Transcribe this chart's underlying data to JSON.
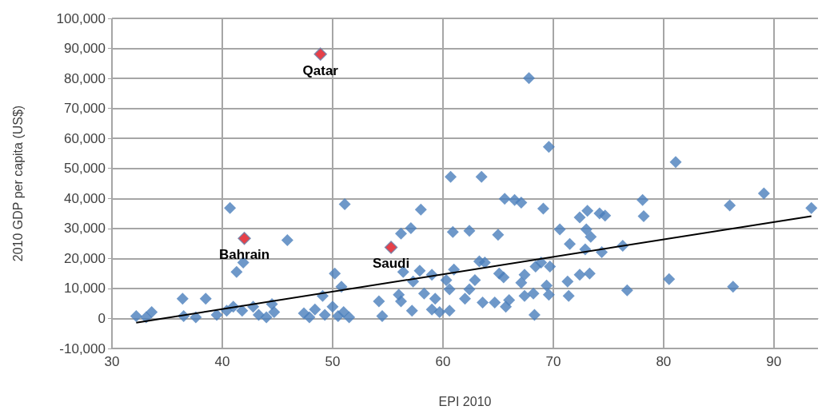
{
  "chart_data": {
    "type": "scatter",
    "xlabel": "EPI 2010",
    "ylabel": "2010 GDP per capita (US$)",
    "xlim": [
      30,
      94
    ],
    "xticks": [
      30,
      40,
      50,
      60,
      70,
      80,
      90
    ],
    "ylim": [
      -10000,
      100000
    ],
    "yticks": [
      {
        "value": -10000,
        "label": "-10,000"
      },
      {
        "value": 0,
        "label": "0"
      },
      {
        "value": 10000,
        "label": "10,000"
      },
      {
        "value": 20000,
        "label": "20,000"
      },
      {
        "value": 30000,
        "label": "30,000"
      },
      {
        "value": 40000,
        "label": "40,000"
      },
      {
        "value": 50000,
        "label": "50,000"
      },
      {
        "value": 60000,
        "label": "60,000"
      },
      {
        "value": 70000,
        "label": "70,000"
      },
      {
        "value": 80000,
        "label": "80,000"
      },
      {
        "value": 90000,
        "label": "90,000"
      },
      {
        "value": 100000,
        "label": "100,000"
      }
    ],
    "grid": true,
    "marker": "diamond",
    "series": [
      {
        "color": "#4a7ebb",
        "x": [
          40.7,
          45.9,
          41.9,
          41.3,
          50.2,
          50.8,
          51.1,
          49.1,
          32.2,
          33.6,
          33.1,
          36.4,
          38.5,
          36.5,
          37.6,
          39.5,
          40.4,
          41.0,
          41.8,
          42.8,
          43.3,
          44.0,
          44.5,
          44.7,
          47.4,
          47.9,
          48.4,
          49.3,
          50.0,
          51.0,
          51.5,
          50.5,
          58.0,
          56.2,
          57.1,
          60.9,
          62.4,
          65.0,
          65.6,
          66.5,
          67.1,
          69.1,
          70.6,
          71.5,
          72.4,
          54.2,
          54.5,
          56.0,
          56.2,
          56.4,
          57.3,
          57.2,
          57.9,
          58.3,
          59.0,
          59.3,
          59.0,
          59.7,
          60.3,
          60.6,
          61.0,
          60.6,
          62.4,
          62.9,
          63.3,
          63.8,
          62.0,
          63.6,
          64.7,
          65.1,
          65.5,
          65.7,
          66.0,
          67.1,
          67.4,
          67.4,
          68.2,
          68.3,
          68.4,
          68.9,
          69.4,
          69.6,
          69.7,
          71.3,
          71.4,
          72.4,
          81.1,
          89.1,
          86.0,
          93.4,
          78.1,
          78.2,
          80.5,
          86.3,
          76.7,
          76.3,
          73.1,
          74.2,
          74.7,
          73.0,
          73.4,
          72.9,
          74.4,
          73.3,
          67.8,
          69.6,
          60.7,
          63.5
        ],
        "values": [
          36800,
          26100,
          18600,
          15500,
          15000,
          10600,
          38100,
          7500,
          800,
          2100,
          400,
          6600,
          6600,
          800,
          400,
          1200,
          2600,
          3900,
          2600,
          3900,
          1200,
          400,
          4800,
          2100,
          1700,
          400,
          3000,
          1200,
          3900,
          2100,
          400,
          800,
          36300,
          28300,
          30100,
          28800,
          29200,
          27900,
          39900,
          39500,
          38600,
          36600,
          29700,
          24800,
          33700,
          5700,
          800,
          7900,
          5700,
          15500,
          12300,
          2600,
          15900,
          8300,
          14600,
          6600,
          3000,
          2100,
          12800,
          2600,
          16300,
          9700,
          9700,
          12800,
          19000,
          18600,
          6600,
          5300,
          5300,
          15000,
          13700,
          3900,
          6100,
          11900,
          14600,
          7500,
          8300,
          1200,
          17300,
          18600,
          11000,
          7900,
          17300,
          12300,
          7500,
          14600,
          52100,
          41700,
          37700,
          36800,
          39500,
          34100,
          13100,
          10600,
          9400,
          24200,
          35900,
          35000,
          34300,
          29700,
          27200,
          23000,
          22100,
          15000,
          80100,
          57200,
          47200,
          47200
        ]
      },
      {
        "color": "#e0101c",
        "x": [
          48.9,
          42.0,
          55.3
        ],
        "values": [
          88100,
          26700,
          23700
        ]
      },
      {
        "type": "line",
        "color": "#000000",
        "marker": "none",
        "x": [
          32.2,
          93.4
        ],
        "values": [
          -1400,
          34100
        ]
      }
    ],
    "annotations": [
      {
        "text": "Qatar",
        "x": 48.9,
        "y": 88100
      },
      {
        "text": "Bahrain",
        "x": 42.0,
        "y": 26700
      },
      {
        "text": "Saudi",
        "x": 55.3,
        "y": 23700
      }
    ]
  }
}
